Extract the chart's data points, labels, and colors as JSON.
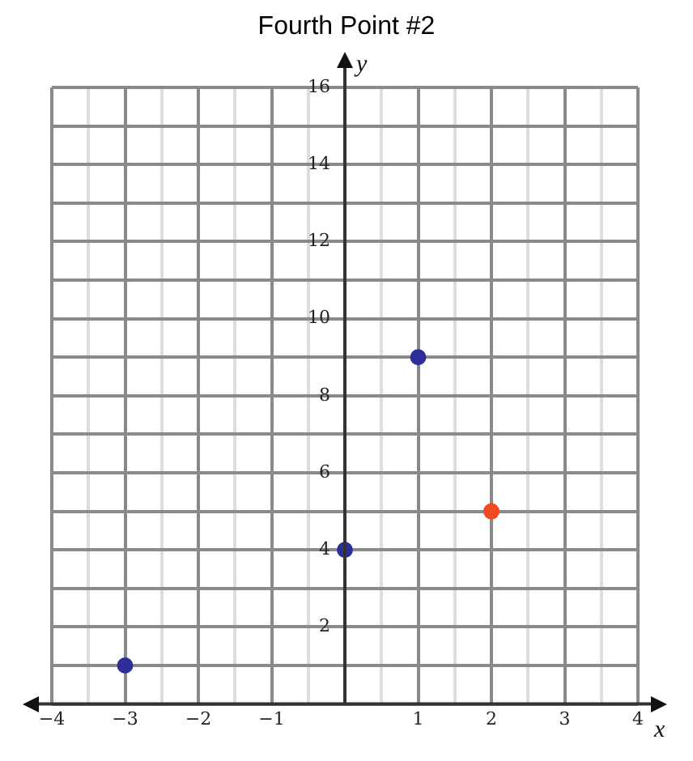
{
  "chart_data": {
    "type": "scatter",
    "title": "Fourth Point #2",
    "xlabel": "x",
    "ylabel": "y",
    "series": [
      {
        "color": "#2e2e99",
        "x": [
          -3,
          0,
          1
        ],
        "values": [
          1,
          4,
          9
        ]
      },
      {
        "color": "#f04a24",
        "x": [
          2
        ],
        "values": [
          5
        ]
      }
    ],
    "xlim": [
      -4,
      4
    ],
    "xticks": [
      -4,
      {
        "value": -3.5,
        "label": null
      },
      -3,
      {
        "value": -2.5,
        "label": null
      },
      -2,
      {
        "value": -1.5,
        "label": null
      },
      -1,
      {
        "value": -0.5,
        "label": null
      },
      {
        "value": 0,
        "label": null
      },
      {
        "value": 0.5,
        "label": null
      },
      1,
      {
        "value": 1.5,
        "label": null
      },
      2,
      {
        "value": 2.5,
        "label": null
      },
      3,
      {
        "value": 3.5,
        "label": null
      },
      4
    ],
    "ylim": [
      0,
      16
    ],
    "yticks": [
      {
        "value": 0,
        "label": null
      },
      {
        "value": 1,
        "label": null
      },
      2,
      {
        "value": 3,
        "label": null
      },
      4,
      {
        "value": 5,
        "label": null
      },
      6,
      {
        "value": 7,
        "label": null
      },
      8,
      {
        "value": 9,
        "label": null
      },
      10,
      {
        "value": 11,
        "label": null
      },
      12,
      {
        "value": 13,
        "label": null
      },
      14,
      {
        "value": 15,
        "label": null
      },
      16
    ],
    "grid": true,
    "marker": "circle",
    "legend": false
  }
}
